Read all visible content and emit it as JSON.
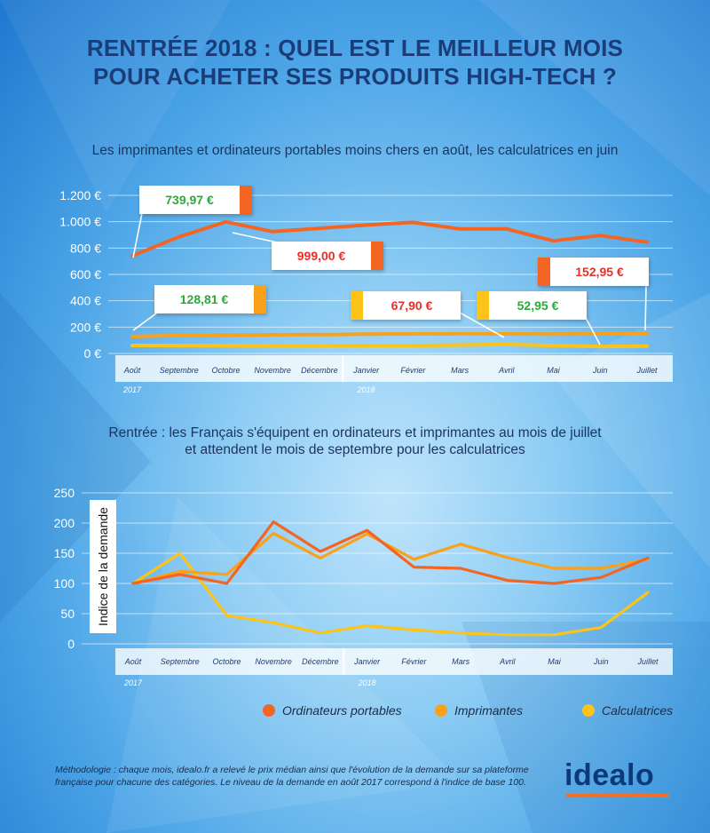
{
  "title": {
    "line1": "RENTRÉE 2018 : QUEL EST LE MEILLEUR MOIS",
    "line2": "POUR ACHETER SES PRODUITS HIGH-TECH ?"
  },
  "colors": {
    "ordinateurs": "#f26522",
    "imprimantes": "#f9a11b",
    "calculatrices": "#fcc419",
    "price_green": "#2aaa3b",
    "price_red": "#e8302a",
    "title_blue": "#1a3d7a"
  },
  "chart_data": [
    {
      "type": "line",
      "title": "Les imprimantes et ordinateurs portables moins chers en août, les calculatrices en juin",
      "categories": [
        "Août",
        "Septembre",
        "Octobre",
        "Novembre",
        "Décembre",
        "Janvier",
        "Février",
        "Mars",
        "Avril",
        "Mai",
        "Juin",
        "Juillet"
      ],
      "years": [
        {
          "label": "2017",
          "index": 0
        },
        {
          "label": "2018",
          "index": 5
        }
      ],
      "ylim": [
        0,
        1200
      ],
      "yticks": [
        0,
        200,
        400,
        600,
        800,
        1000,
        1200
      ],
      "ytick_labels": [
        "0 €",
        "200 €",
        "400 €",
        "600 €",
        "800 €",
        "1.000 €",
        "1.200 €"
      ],
      "series": [
        {
          "name": "Ordinateurs portables",
          "values": [
            740,
            885,
            999,
            925,
            950,
            975,
            995,
            945,
            945,
            855,
            895,
            845
          ]
        },
        {
          "name": "Imprimantes",
          "values": [
            128.81,
            136,
            140,
            142,
            143,
            146,
            148,
            150,
            148,
            146,
            150,
            152.95
          ]
        },
        {
          "name": "Calculatrices",
          "values": [
            61,
            60,
            59,
            58,
            59,
            60,
            61,
            64,
            67.9,
            60,
            52.95,
            55
          ]
        }
      ],
      "callouts": [
        {
          "text": "739,97 €",
          "series": "Ordinateurs portables",
          "kind": "low"
        },
        {
          "text": "999,00 €",
          "series": "Ordinateurs portables",
          "kind": "high"
        },
        {
          "text": "128,81 €",
          "series": "Imprimantes",
          "kind": "low"
        },
        {
          "text": "152,95 €",
          "series": "Imprimantes",
          "kind": "high"
        },
        {
          "text": "67,90 €",
          "series": "Calculatrices",
          "kind": "high"
        },
        {
          "text": "52,95 €",
          "series": "Calculatrices",
          "kind": "low"
        }
      ]
    },
    {
      "type": "line",
      "title": "Rentrée : les Français s'équipent en ordinateurs et imprimantes au mois de juillet et attendent le mois de septembre pour les calculatrices",
      "ylabel": "Indice de la demande",
      "categories": [
        "Août",
        "Septembre",
        "Octobre",
        "Novembre",
        "Décembre",
        "Janvier",
        "Février",
        "Mars",
        "Avril",
        "Mai",
        "Juin",
        "Juillet"
      ],
      "years": [
        {
          "label": "2017",
          "index": 0
        },
        {
          "label": "2018",
          "index": 5
        }
      ],
      "ylim": [
        0,
        250
      ],
      "yticks": [
        0,
        50,
        100,
        150,
        200,
        250
      ],
      "ytick_labels": [
        "0",
        "50",
        "100",
        "150",
        "200",
        "250"
      ],
      "series": [
        {
          "name": "Ordinateurs portables",
          "values": [
            100,
            115,
            100,
            202,
            153,
            188,
            127,
            125,
            105,
            100,
            110,
            142
          ]
        },
        {
          "name": "Imprimantes",
          "values": [
            100,
            120,
            115,
            183,
            142,
            182,
            140,
            165,
            143,
            125,
            125,
            140
          ]
        },
        {
          "name": "Calculatrices",
          "values": [
            100,
            150,
            47,
            35,
            18,
            30,
            23,
            18,
            15,
            15,
            27,
            85
          ]
        }
      ]
    }
  ],
  "subtitle2": {
    "line1": "Rentrée : les Français s'équipent en ordinateurs et imprimantes au mois de juillet",
    "line2": "et attendent le mois de septembre pour les calculatrices"
  },
  "legend": [
    {
      "label": "Ordinateurs portables",
      "color": "#f26522"
    },
    {
      "label": "Imprimantes",
      "color": "#f9a11b"
    },
    {
      "label": "Calculatrices",
      "color": "#fcc419"
    }
  ],
  "methodology": {
    "line1": "Méthodologie : chaque mois, idealo.fr a relevé le prix médian ainsi que l'évolution de la demande sur sa plateforme",
    "line2": "française pour chacune des catégories. Le niveau de la demande en août 2017 correspond à l'indice de base 100."
  },
  "logo": {
    "text": "idealo"
  }
}
